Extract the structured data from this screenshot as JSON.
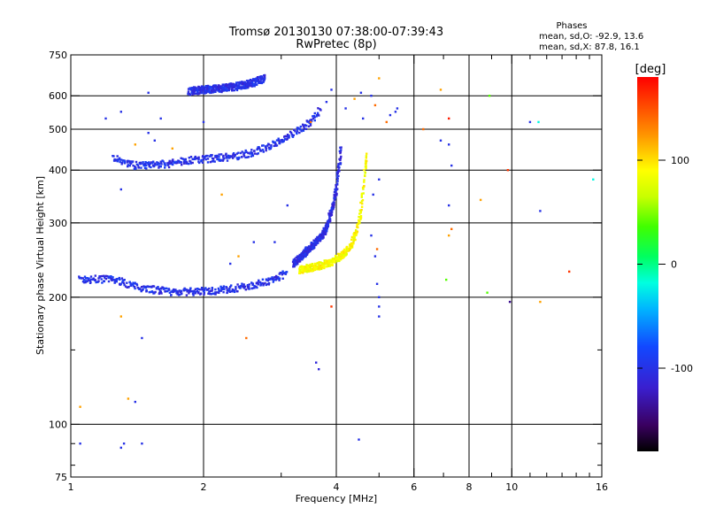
{
  "chart_data": {
    "type": "scatter",
    "title": "Tromsø 20130130 07:38:00-07:39:43",
    "subtitle": "RwPretec (8p)",
    "phases": {
      "title": "Phases",
      "line_o": "mean, sd,O: -92.9, 13.6",
      "line_x": "mean, sd,X:  87.8, 16.1"
    },
    "xlabel": "Frequency [MHz]",
    "ylabel": "Stationary phase Virtual Height [km]",
    "x_scale": "log",
    "y_scale": "log",
    "xlim": [
      1,
      16
    ],
    "ylim": [
      75,
      750
    ],
    "x_ticks": [
      "1",
      "2",
      "4",
      "6",
      "8",
      "10",
      "16"
    ],
    "x_tick_values": [
      1,
      2,
      4,
      6,
      8,
      10,
      16
    ],
    "x_minor_ticks": [
      3,
      5,
      7,
      9,
      11,
      12,
      13,
      14,
      15
    ],
    "y_ticks": [
      "75",
      "100",
      "200",
      "300",
      "400",
      "500",
      "600",
      "750"
    ],
    "y_tick_values": [
      75,
      100,
      200,
      300,
      400,
      500,
      600,
      750
    ],
    "y_minor_ticks": [
      80,
      90,
      150
    ],
    "x_grid": [
      2,
      4,
      6,
      8,
      10
    ],
    "y_grid": [
      100,
      200,
      300,
      400,
      500,
      600
    ],
    "grid": true,
    "colorbar": {
      "label": "[deg]",
      "range": [
        -180,
        180
      ],
      "tick_labels": [
        "100",
        "0",
        "-100"
      ],
      "tick_values": [
        100,
        0,
        -100
      ]
    },
    "traces": [
      {
        "phase": -100,
        "freq_range": [
          1.05,
          3.1
        ],
        "points": [
          [
            1.05,
            220
          ],
          [
            1.1,
            220
          ],
          [
            1.2,
            221
          ],
          [
            1.3,
            218
          ],
          [
            1.4,
            212
          ],
          [
            1.55,
            208
          ],
          [
            1.7,
            206
          ],
          [
            1.9,
            206
          ],
          [
            2.1,
            207
          ],
          [
            2.3,
            209
          ],
          [
            2.5,
            212
          ],
          [
            2.7,
            216
          ],
          [
            2.9,
            221
          ],
          [
            3.1,
            228
          ]
        ]
      },
      {
        "phase": -105,
        "freq_range": [
          3.2,
          4.1
        ],
        "points": [
          [
            3.2,
            240
          ],
          [
            3.4,
            255
          ],
          [
            3.6,
            270
          ],
          [
            3.8,
            290
          ],
          [
            3.9,
            320
          ],
          [
            4.0,
            360
          ],
          [
            4.05,
            400
          ],
          [
            4.1,
            450
          ]
        ]
      },
      {
        "phase": -100,
        "freq_range": [
          1.25,
          3.7
        ],
        "points": [
          [
            1.25,
            430
          ],
          [
            1.4,
            410
          ],
          [
            1.6,
            412
          ],
          [
            1.8,
            420
          ],
          [
            2.0,
            425
          ],
          [
            2.3,
            430
          ],
          [
            2.6,
            440
          ],
          [
            2.8,
            455
          ],
          [
            3.0,
            470
          ],
          [
            3.2,
            490
          ],
          [
            3.5,
            520
          ],
          [
            3.7,
            560
          ]
        ]
      },
      {
        "phase": -102,
        "freq_range": [
          1.85,
          2.75
        ],
        "points": [
          [
            1.85,
            615
          ],
          [
            2.0,
            620
          ],
          [
            2.2,
            625
          ],
          [
            2.4,
            632
          ],
          [
            2.6,
            645
          ],
          [
            2.75,
            660
          ]
        ]
      },
      {
        "phase": 88,
        "freq_range": [
          3.3,
          4.7
        ],
        "points": [
          [
            3.3,
            232
          ],
          [
            3.6,
            236
          ],
          [
            3.9,
            242
          ],
          [
            4.1,
            250
          ],
          [
            4.3,
            262
          ],
          [
            4.45,
            285
          ],
          [
            4.55,
            320
          ],
          [
            4.6,
            360
          ],
          [
            4.65,
            400
          ],
          [
            4.7,
            430
          ]
        ]
      }
    ],
    "scattered": [
      {
        "x": 1.05,
        "y": 90,
        "p": -100
      },
      {
        "x": 1.05,
        "y": 110,
        "p": 120
      },
      {
        "x": 1.3,
        "y": 88,
        "p": -100
      },
      {
        "x": 1.32,
        "y": 90,
        "p": -100
      },
      {
        "x": 1.45,
        "y": 90,
        "p": -100
      },
      {
        "x": 1.4,
        "y": 113,
        "p": -100
      },
      {
        "x": 1.35,
        "y": 115,
        "p": 120
      },
      {
        "x": 1.45,
        "y": 160,
        "p": -100
      },
      {
        "x": 1.3,
        "y": 180,
        "p": 120
      },
      {
        "x": 1.2,
        "y": 530,
        "p": -100
      },
      {
        "x": 1.3,
        "y": 550,
        "p": -100
      },
      {
        "x": 1.35,
        "y": 420,
        "p": -100
      },
      {
        "x": 1.4,
        "y": 460,
        "p": 120
      },
      {
        "x": 1.5,
        "y": 490,
        "p": -100
      },
      {
        "x": 1.6,
        "y": 530,
        "p": -100
      },
      {
        "x": 1.55,
        "y": 470,
        "p": -100
      },
      {
        "x": 1.3,
        "y": 360,
        "p": -100
      },
      {
        "x": 1.5,
        "y": 610,
        "p": -100
      },
      {
        "x": 1.7,
        "y": 450,
        "p": 120
      },
      {
        "x": 2.0,
        "y": 520,
        "p": -100
      },
      {
        "x": 2.2,
        "y": 350,
        "p": 120
      },
      {
        "x": 2.4,
        "y": 250,
        "p": 120
      },
      {
        "x": 2.6,
        "y": 270,
        "p": -100
      },
      {
        "x": 2.3,
        "y": 240,
        "p": -100
      },
      {
        "x": 2.5,
        "y": 160,
        "p": 140
      },
      {
        "x": 2.9,
        "y": 270,
        "p": -100
      },
      {
        "x": 3.1,
        "y": 330,
        "p": -100
      },
      {
        "x": 3.5,
        "y": 520,
        "p": 140
      },
      {
        "x": 3.6,
        "y": 140,
        "p": -110
      },
      {
        "x": 3.65,
        "y": 135,
        "p": -110
      },
      {
        "x": 3.9,
        "y": 190,
        "p": 160
      },
      {
        "x": 3.8,
        "y": 580,
        "p": -100
      },
      {
        "x": 3.9,
        "y": 620,
        "p": -100
      },
      {
        "x": 4.2,
        "y": 560,
        "p": -100
      },
      {
        "x": 4.6,
        "y": 530,
        "p": -100
      },
      {
        "x": 4.4,
        "y": 590,
        "p": 120
      },
      {
        "x": 4.55,
        "y": 610,
        "p": -100
      },
      {
        "x": 4.9,
        "y": 570,
        "p": 140
      },
      {
        "x": 4.8,
        "y": 600,
        "p": -100
      },
      {
        "x": 5.0,
        "y": 660,
        "p": 120
      },
      {
        "x": 5.3,
        "y": 540,
        "p": -100
      },
      {
        "x": 5.2,
        "y": 520,
        "p": 140
      },
      {
        "x": 5.5,
        "y": 560,
        "p": -100
      },
      {
        "x": 5.45,
        "y": 550,
        "p": -100
      },
      {
        "x": 4.8,
        "y": 280,
        "p": -100
      },
      {
        "x": 4.9,
        "y": 250,
        "p": -100
      },
      {
        "x": 4.95,
        "y": 215,
        "p": -100
      },
      {
        "x": 5.0,
        "y": 200,
        "p": -100
      },
      {
        "x": 4.95,
        "y": 260,
        "p": 140
      },
      {
        "x": 5.0,
        "y": 380,
        "p": -100
      },
      {
        "x": 4.85,
        "y": 350,
        "p": -100
      },
      {
        "x": 4.5,
        "y": 92,
        "p": -100
      },
      {
        "x": 5.0,
        "y": 190,
        "p": -100
      },
      {
        "x": 5.0,
        "y": 180,
        "p": -100
      },
      {
        "x": 6.3,
        "y": 500,
        "p": 140
      },
      {
        "x": 6.9,
        "y": 470,
        "p": -100
      },
      {
        "x": 6.9,
        "y": 620,
        "p": 120
      },
      {
        "x": 7.2,
        "y": 530,
        "p": 170
      },
      {
        "x": 7.2,
        "y": 460,
        "p": -100
      },
      {
        "x": 7.3,
        "y": 410,
        "p": -100
      },
      {
        "x": 7.2,
        "y": 330,
        "p": -100
      },
      {
        "x": 7.3,
        "y": 290,
        "p": 140
      },
      {
        "x": 7.2,
        "y": 280,
        "p": 120
      },
      {
        "x": 7.1,
        "y": 220,
        "p": 40
      },
      {
        "x": 8.5,
        "y": 340,
        "p": 120
      },
      {
        "x": 8.9,
        "y": 600,
        "p": 40
      },
      {
        "x": 8.8,
        "y": 205,
        "p": 40
      },
      {
        "x": 9.8,
        "y": 400,
        "p": 160
      },
      {
        "x": 9.9,
        "y": 195,
        "p": -140
      },
      {
        "x": 11.0,
        "y": 520,
        "p": -100
      },
      {
        "x": 11.5,
        "y": 520,
        "p": -20
      },
      {
        "x": 11.6,
        "y": 320,
        "p": -100
      },
      {
        "x": 11.6,
        "y": 195,
        "p": 120
      },
      {
        "x": 13.5,
        "y": 230,
        "p": 160
      },
      {
        "x": 15.3,
        "y": 380,
        "p": -20
      }
    ]
  }
}
